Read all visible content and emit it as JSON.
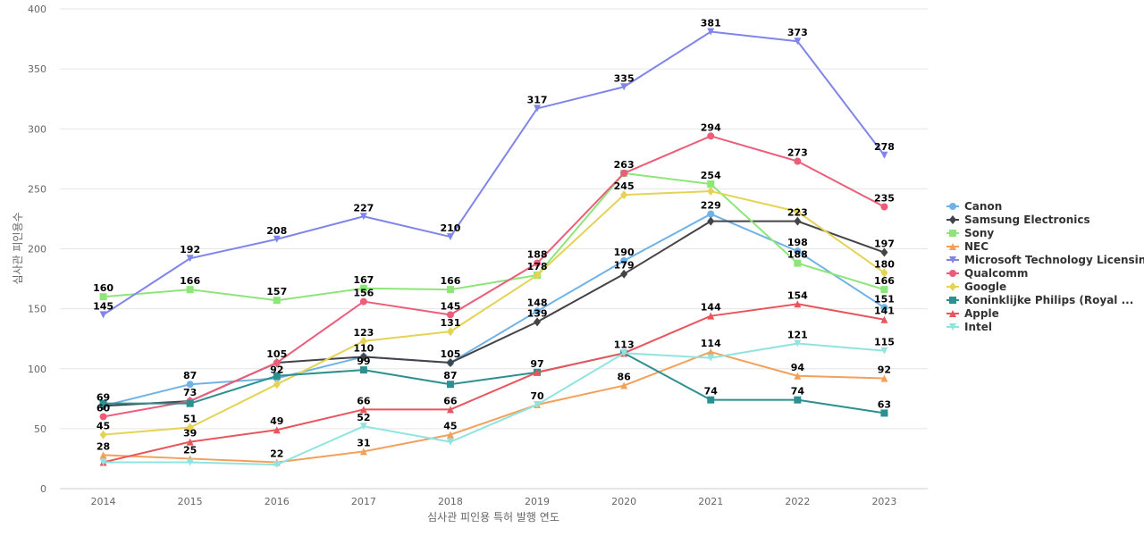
{
  "chart_data": {
    "type": "line",
    "title": "",
    "xlabel": "심사관 피인용 특허 발행 연도",
    "ylabel": "심사관 피인용수",
    "ylim": [
      0,
      400
    ],
    "yticks": [
      0,
      50,
      100,
      150,
      200,
      250,
      300,
      350,
      400
    ],
    "categories": [
      "2014",
      "2015",
      "2016",
      "2017",
      "2018",
      "2019",
      "2020",
      "2021",
      "2022",
      "2023"
    ],
    "grid": true,
    "legend_position": "right",
    "series": [
      {
        "name": "Canon",
        "color": "#6fb2e6",
        "marker": "circle",
        "values": [
          69,
          87,
          92,
          110,
          105,
          148,
          190,
          229,
          198,
          151
        ]
      },
      {
        "name": "Samsung Electronics",
        "color": "#434348",
        "marker": "diamond",
        "values": [
          69,
          73,
          105,
          110,
          105,
          139,
          179,
          223,
          223,
          197
        ]
      },
      {
        "name": "Sony",
        "color": "#8ee57a",
        "marker": "square",
        "values": [
          160,
          166,
          157,
          167,
          166,
          178,
          263,
          254,
          188,
          166
        ]
      },
      {
        "name": "NEC",
        "color": "#f3a05a",
        "marker": "triangle",
        "values": [
          28,
          25,
          22,
          31,
          45,
          70,
          86,
          114,
          94,
          92
        ]
      },
      {
        "name": "Microsoft Technology Licensing",
        "color": "#8085e9",
        "marker": "triangle-down",
        "values": [
          145,
          192,
          208,
          227,
          210,
          317,
          335,
          381,
          373,
          278
        ]
      },
      {
        "name": "Qualcomm",
        "color": "#ec5d7a",
        "marker": "circle",
        "values": [
          60,
          73,
          105,
          156,
          145,
          188,
          263,
          294,
          273,
          235
        ]
      },
      {
        "name": "Google",
        "color": "#e4d354",
        "marker": "diamond",
        "values": [
          45,
          51,
          87,
          123,
          131,
          178,
          245,
          248,
          231,
          180
        ]
      },
      {
        "name": "Koninklijke Philips (Royal ...",
        "color": "#2b908f",
        "marker": "square",
        "values": [
          71,
          71,
          94,
          99,
          87,
          97,
          113,
          74,
          74,
          63
        ]
      },
      {
        "name": "Apple",
        "color": "#e8555d",
        "marker": "triangle",
        "values": [
          22,
          39,
          49,
          66,
          66,
          97,
          113,
          144,
          154,
          141
        ]
      },
      {
        "name": "Intel",
        "color": "#90e4e0",
        "marker": "triangle-down",
        "values": [
          22,
          22,
          20,
          52,
          39,
          70,
          113,
          109,
          121,
          115
        ]
      }
    ],
    "data_labels": [
      {
        "x": "2014",
        "text": "69",
        "y": 69
      },
      {
        "x": "2014",
        "text": "60",
        "y": 60
      },
      {
        "x": "2014",
        "text": "160",
        "y": 160
      },
      {
        "x": "2014",
        "text": "145",
        "y": 145
      },
      {
        "x": "2014",
        "text": "45",
        "y": 45
      },
      {
        "x": "2014",
        "text": "28",
        "y": 28
      },
      {
        "x": "2015",
        "text": "87",
        "y": 87
      },
      {
        "x": "2015",
        "text": "73",
        "y": 73
      },
      {
        "x": "2015",
        "text": "166",
        "y": 166
      },
      {
        "x": "2015",
        "text": "192",
        "y": 192
      },
      {
        "x": "2015",
        "text": "51",
        "y": 51
      },
      {
        "x": "2015",
        "text": "39",
        "y": 39
      },
      {
        "x": "2015",
        "text": "25",
        "y": 25
      },
      {
        "x": "2016",
        "text": "92",
        "y": 92
      },
      {
        "x": "2016",
        "text": "105",
        "y": 105
      },
      {
        "x": "2016",
        "text": "157",
        "y": 157
      },
      {
        "x": "2016",
        "text": "208",
        "y": 208
      },
      {
        "x": "2016",
        "text": "49",
        "y": 49
      },
      {
        "x": "2016",
        "text": "22",
        "y": 22
      },
      {
        "x": "2017",
        "text": "110",
        "y": 110
      },
      {
        "x": "2017",
        "text": "99",
        "y": 99
      },
      {
        "x": "2017",
        "text": "167",
        "y": 167
      },
      {
        "x": "2017",
        "text": "156",
        "y": 156
      },
      {
        "x": "2017",
        "text": "227",
        "y": 227
      },
      {
        "x": "2017",
        "text": "123",
        "y": 123
      },
      {
        "x": "2017",
        "text": "66",
        "y": 66
      },
      {
        "x": "2017",
        "text": "52",
        "y": 52
      },
      {
        "x": "2017",
        "text": "31",
        "y": 31
      },
      {
        "x": "2018",
        "text": "105",
        "y": 105
      },
      {
        "x": "2018",
        "text": "166",
        "y": 166
      },
      {
        "x": "2018",
        "text": "145",
        "y": 145
      },
      {
        "x": "2018",
        "text": "210",
        "y": 210
      },
      {
        "x": "2018",
        "text": "131",
        "y": 131
      },
      {
        "x": "2018",
        "text": "87",
        "y": 87
      },
      {
        "x": "2018",
        "text": "66",
        "y": 66
      },
      {
        "x": "2018",
        "text": "45",
        "y": 45
      },
      {
        "x": "2019",
        "text": "317",
        "y": 317
      },
      {
        "x": "2019",
        "text": "188",
        "y": 188
      },
      {
        "x": "2019",
        "text": "178",
        "y": 178
      },
      {
        "x": "2019",
        "text": "148",
        "y": 148
      },
      {
        "x": "2019",
        "text": "139",
        "y": 139
      },
      {
        "x": "2019",
        "text": "97",
        "y": 97
      },
      {
        "x": "2019",
        "text": "70",
        "y": 70
      },
      {
        "x": "2020",
        "text": "335",
        "y": 335
      },
      {
        "x": "2020",
        "text": "263",
        "y": 263
      },
      {
        "x": "2020",
        "text": "245",
        "y": 245
      },
      {
        "x": "2020",
        "text": "190",
        "y": 190
      },
      {
        "x": "2020",
        "text": "179",
        "y": 179
      },
      {
        "x": "2020",
        "text": "113",
        "y": 113
      },
      {
        "x": "2020",
        "text": "86",
        "y": 86
      },
      {
        "x": "2021",
        "text": "381",
        "y": 381
      },
      {
        "x": "2021",
        "text": "294",
        "y": 294
      },
      {
        "x": "2021",
        "text": "254",
        "y": 254
      },
      {
        "x": "2021",
        "text": "229",
        "y": 229
      },
      {
        "x": "2021",
        "text": "144",
        "y": 144
      },
      {
        "x": "2021",
        "text": "114",
        "y": 114
      },
      {
        "x": "2021",
        "text": "74",
        "y": 74
      },
      {
        "x": "2022",
        "text": "373",
        "y": 373
      },
      {
        "x": "2022",
        "text": "273",
        "y": 273
      },
      {
        "x": "2022",
        "text": "223",
        "y": 223
      },
      {
        "x": "2022",
        "text": "198",
        "y": 198
      },
      {
        "x": "2022",
        "text": "188",
        "y": 188
      },
      {
        "x": "2022",
        "text": "154",
        "y": 154
      },
      {
        "x": "2022",
        "text": "121",
        "y": 121
      },
      {
        "x": "2022",
        "text": "94",
        "y": 94
      },
      {
        "x": "2022",
        "text": "74",
        "y": 74
      },
      {
        "x": "2023",
        "text": "278",
        "y": 278
      },
      {
        "x": "2023",
        "text": "235",
        "y": 235
      },
      {
        "x": "2023",
        "text": "197",
        "y": 197
      },
      {
        "x": "2023",
        "text": "180",
        "y": 180
      },
      {
        "x": "2023",
        "text": "166",
        "y": 166
      },
      {
        "x": "2023",
        "text": "151",
        "y": 151
      },
      {
        "x": "2023",
        "text": "141",
        "y": 141
      },
      {
        "x": "2023",
        "text": "115",
        "y": 115
      },
      {
        "x": "2023",
        "text": "92",
        "y": 92
      },
      {
        "x": "2023",
        "text": "63",
        "y": 63
      }
    ]
  }
}
